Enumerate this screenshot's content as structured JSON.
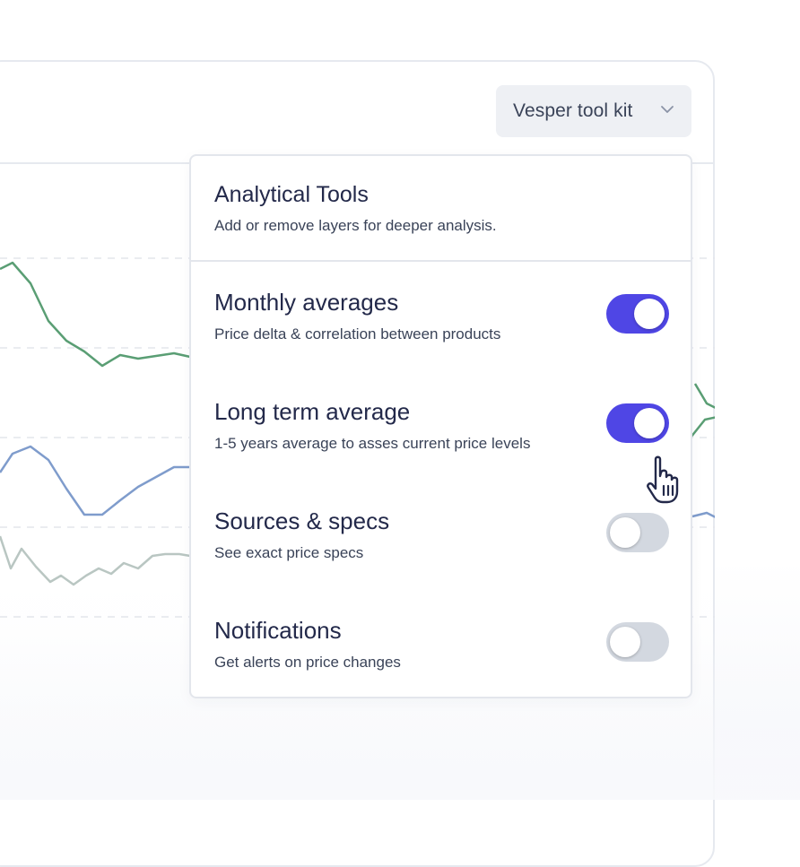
{
  "toolkit": {
    "label": "Vesper tool kit",
    "icon": "chevron-down-icon"
  },
  "dropdown": {
    "title": "Analytical Tools",
    "subtitle": "Add or remove layers for deeper analysis.",
    "options": [
      {
        "title": "Monthly averages",
        "description": "Price delta & correlation between products",
        "enabled": true
      },
      {
        "title": "Long term average",
        "description": "1-5 years average to asses current price levels",
        "enabled": true
      },
      {
        "title": "Sources & specs",
        "description": "See exact price specs",
        "enabled": false
      },
      {
        "title": "Notifications",
        "description": "Get alerts on price changes",
        "enabled": false
      }
    ]
  },
  "colors": {
    "accent": "#4f46e5",
    "toggle_off": "#d3d8e0",
    "series_green": "#5a9e74",
    "series_blue": "#7f9ccc",
    "series_grey": "#b9c6c2"
  },
  "cursor": {
    "icon": "hand-pointer-icon"
  }
}
